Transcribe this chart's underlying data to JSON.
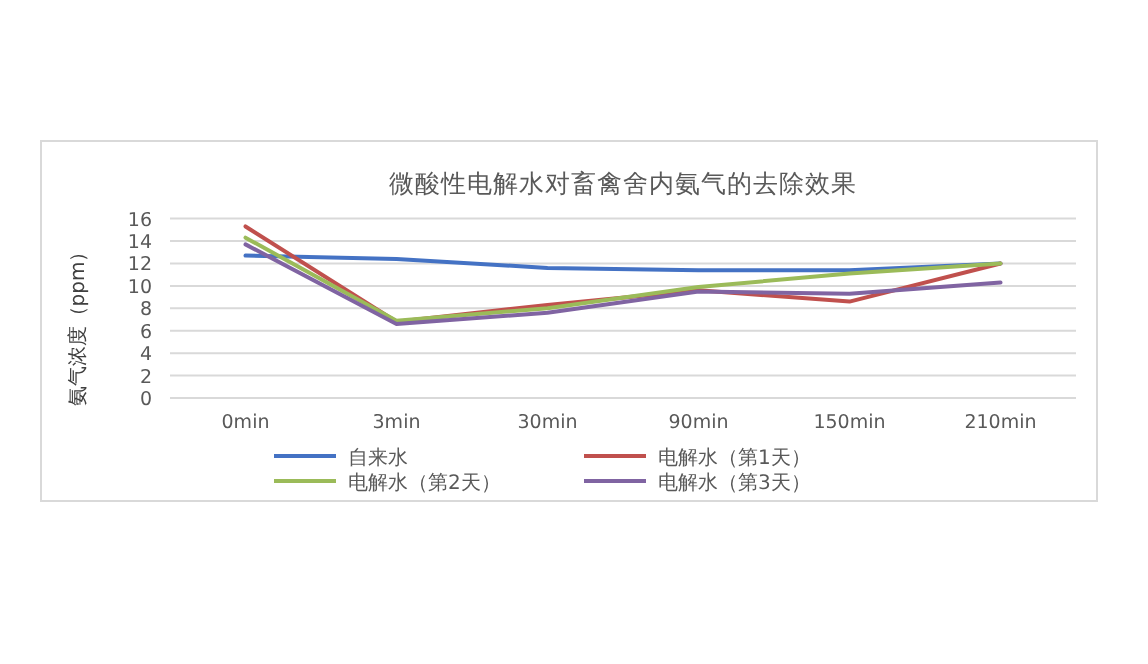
{
  "chart_data": {
    "type": "line",
    "title": "微酸性电解水对畜禽舍内氨气的去除效果",
    "ylabel": "氨气浓度（ppm）",
    "categories": [
      "0min",
      "3min",
      "30min",
      "90min",
      "150min",
      "210min"
    ],
    "series": [
      {
        "name": "自来水",
        "color": "#4472c4",
        "values": [
          12.7,
          12.4,
          11.6,
          11.4,
          11.4,
          12.0
        ]
      },
      {
        "name": "电解水（第1天）",
        "color": "#c0504d",
        "values": [
          15.3,
          6.8,
          8.3,
          9.6,
          8.6,
          12.0
        ]
      },
      {
        "name": "电解水（第2天）",
        "color": "#9bbb59",
        "values": [
          14.3,
          6.9,
          8.0,
          9.9,
          11.1,
          12.0
        ]
      },
      {
        "name": "电解水（第3天）",
        "color": "#8064a2",
        "values": [
          13.7,
          6.6,
          7.6,
          9.5,
          9.3,
          10.3
        ]
      }
    ],
    "ylim": [
      0,
      16
    ],
    "yticks": [
      0,
      2,
      4,
      6,
      8,
      10,
      12,
      14,
      16
    ],
    "grid": "y",
    "legend": "bottom"
  }
}
